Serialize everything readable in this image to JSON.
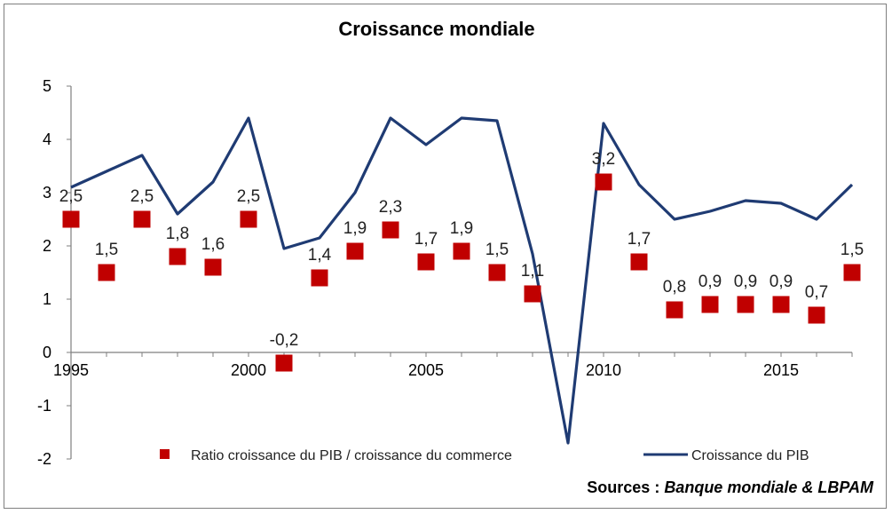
{
  "chart_data": {
    "type": "line",
    "title": "Croissance mondiale",
    "x": [
      1995,
      1996,
      1997,
      1998,
      1999,
      2000,
      2001,
      2002,
      2003,
      2004,
      2005,
      2006,
      2007,
      2008,
      2009,
      2010,
      2011,
      2012,
      2013,
      2014,
      2015,
      2016,
      2017
    ],
    "x_tick_labels": [
      "1995",
      "2000",
      "2005",
      "2010",
      "2015"
    ],
    "y_tick_labels": [
      "5",
      "4",
      "3",
      "2",
      "1",
      "0",
      "-1",
      "-2"
    ],
    "ylim": [
      -2,
      5
    ],
    "xlim": [
      1995,
      2017
    ],
    "series": [
      {
        "name": "Ratio croissance du PIB / croissance du commerce",
        "kind": "marker",
        "color": "#c00000",
        "values": [
          2.5,
          1.5,
          2.5,
          1.8,
          1.6,
          2.5,
          -0.2,
          1.4,
          1.9,
          2.3,
          1.7,
          1.9,
          1.5,
          1.1,
          null,
          3.2,
          1.7,
          0.8,
          0.9,
          0.9,
          0.9,
          0.7,
          1.5
        ],
        "labels": [
          "2,5",
          "1,5",
          "2,5",
          "1,8",
          "1,6",
          "2,5",
          "-0,2",
          "1,4",
          "1,9",
          "2,3",
          "1,7",
          "1,9",
          "1,5",
          "1,1",
          "",
          "3,2",
          "1,7",
          "0,8",
          "0,9",
          "0,9",
          "0,9",
          "0,7",
          "1,5"
        ]
      },
      {
        "name": "Croissance du PIB",
        "kind": "line",
        "color": "#1f3b73",
        "values": [
          3.1,
          3.4,
          3.7,
          2.6,
          3.2,
          4.4,
          1.95,
          2.15,
          3.0,
          4.4,
          3.9,
          4.4,
          4.35,
          1.85,
          -1.7,
          4.3,
          3.15,
          2.5,
          2.65,
          2.85,
          2.8,
          2.5,
          3.15
        ]
      }
    ],
    "legend_position": "bottom",
    "grid": false,
    "source_prefix": "Sources : ",
    "source_text": "Banque mondiale & LBPAM"
  }
}
